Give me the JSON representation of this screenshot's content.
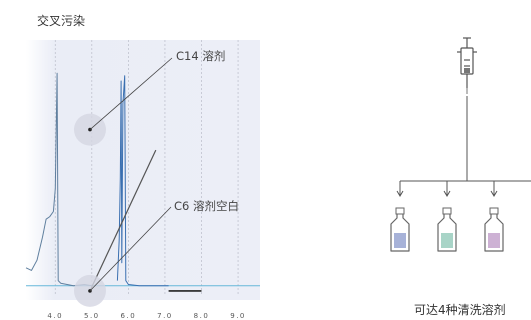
{
  "chart": {
    "title": "交叉污染",
    "callouts": [
      {
        "label": "C14 溶剂"
      },
      {
        "label": "C6 溶剂空白"
      }
    ]
  },
  "chart_data": {
    "type": "line",
    "title": "交叉污染",
    "xlabel": "",
    "ylabel": "",
    "x_ticks": [
      "4.0",
      "5.0",
      "6.0",
      "7.0",
      "8.0",
      "9.0"
    ],
    "xlim": [
      3.2,
      9.6
    ],
    "ylim": [
      0,
      1
    ],
    "grid": true,
    "grid_style": "dashed vertical",
    "annotations": [
      {
        "text": "C14 溶剂",
        "x": 4.95,
        "y": 0.65
      },
      {
        "text": "C6 溶剂空白",
        "x": 4.95,
        "y": 0.02
      }
    ],
    "series": [
      {
        "color": "#5f7f9e",
        "points": [
          [
            3.2,
            0.11
          ],
          [
            3.35,
            0.1
          ],
          [
            3.5,
            0.14
          ],
          [
            3.65,
            0.23
          ],
          [
            3.75,
            0.3
          ],
          [
            3.85,
            0.31
          ],
          [
            3.95,
            0.33
          ],
          [
            4.0,
            0.42
          ],
          [
            4.05,
            0.87
          ],
          [
            4.08,
            0.06
          ],
          [
            4.15,
            0.05
          ],
          [
            4.5,
            0.04
          ],
          [
            4.8,
            0.045
          ],
          [
            5.0,
            0.04
          ]
        ]
      },
      {
        "color": "#3a6fb0",
        "points": [
          [
            5.7,
            0.06
          ],
          [
            5.75,
            0.22
          ],
          [
            5.78,
            0.46
          ],
          [
            5.8,
            0.84
          ],
          [
            5.82,
            0.13
          ],
          [
            5.85,
            0.75
          ],
          [
            5.9,
            0.86
          ],
          [
            5.93,
            0.06
          ],
          [
            6.0,
            0.045
          ],
          [
            6.3,
            0.04
          ],
          [
            7.1,
            0.04
          ]
        ]
      },
      {
        "color": "#222222",
        "points": [
          [
            7.1,
            0.02
          ],
          [
            8.0,
            0.02
          ]
        ]
      }
    ],
    "diagonal_line": {
      "color": "#555555",
      "points": [
        [
          4.95,
          0.02
        ],
        [
          6.75,
          0.57
        ]
      ]
    }
  },
  "diagram": {
    "caption": "可达4种清洗溶剂",
    "icon_colors": {
      "syringe": "#555555",
      "vial_outline": "#666666",
      "vial_liquid": [
        "#a7b2d8",
        "#a8d4c7",
        "#cdb1d4"
      ]
    }
  },
  "colors": {
    "plot_background": "#e8ebf5",
    "baseline": "#66b7d9",
    "grid": "#b9bcc8",
    "callout_circle": "#d4d6e2"
  }
}
